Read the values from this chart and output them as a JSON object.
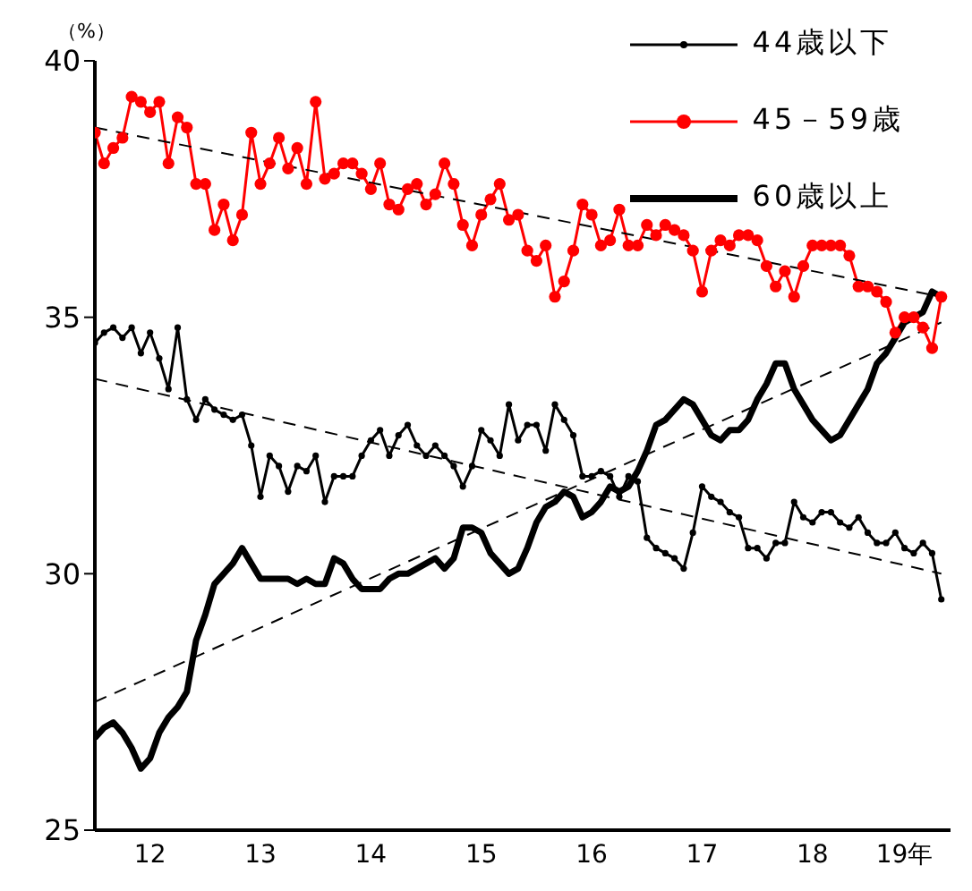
{
  "chart_data": {
    "type": "line",
    "ylabel": "（%）",
    "x": [
      "2012-01",
      "2012-02",
      "2012-03",
      "2012-04",
      "2012-05",
      "2012-06",
      "2012-07",
      "2012-08",
      "2012-09",
      "2012-10",
      "2012-11",
      "2012-12",
      "2013-01",
      "2013-02",
      "2013-03",
      "2013-04",
      "2013-05",
      "2013-06",
      "2013-07",
      "2013-08",
      "2013-09",
      "2013-10",
      "2013-11",
      "2013-12",
      "2014-01",
      "2014-02",
      "2014-03",
      "2014-04",
      "2014-05",
      "2014-06",
      "2014-07",
      "2014-08",
      "2014-09",
      "2014-10",
      "2014-11",
      "2014-12",
      "2015-01",
      "2015-02",
      "2015-03",
      "2015-04",
      "2015-05",
      "2015-06",
      "2015-07",
      "2015-08",
      "2015-09",
      "2015-10",
      "2015-11",
      "2015-12",
      "2016-01",
      "2016-02",
      "2016-03",
      "2016-04",
      "2016-05",
      "2016-06",
      "2016-07",
      "2016-08",
      "2016-09",
      "2016-10",
      "2016-11",
      "2016-12",
      "2017-01",
      "2017-02",
      "2017-03",
      "2017-04",
      "2017-05",
      "2017-06",
      "2017-07",
      "2017-08",
      "2017-09",
      "2017-10",
      "2017-11",
      "2017-12",
      "2018-01",
      "2018-02",
      "2018-03",
      "2018-04",
      "2018-05",
      "2018-06",
      "2018-07",
      "2018-08",
      "2018-09",
      "2018-10",
      "2018-11",
      "2018-12",
      "2019-01",
      "2019-02",
      "2019-03",
      "2019-04",
      "2019-05",
      "2019-06",
      "2019-07",
      "2019-08",
      "2019-09"
    ],
    "xlim": [
      "2012-01",
      "2019-10"
    ],
    "xticks": [
      {
        "value": "2012-07",
        "label": "12"
      },
      {
        "value": "2013-07",
        "label": "13"
      },
      {
        "value": "2014-07",
        "label": "14"
      },
      {
        "value": "2015-07",
        "label": "15"
      },
      {
        "value": "2016-07",
        "label": "16"
      },
      {
        "value": "2017-07",
        "label": "17"
      },
      {
        "value": "2018-07",
        "label": "18"
      },
      {
        "value": "2019-05",
        "label": "19年"
      }
    ],
    "ylim": [
      25,
      40
    ],
    "yticks": [
      25,
      30,
      35,
      40
    ],
    "grid": false,
    "legend": "top right",
    "series": [
      {
        "name": "44歳以下",
        "color": "#000000",
        "marker": "circle",
        "line_style": "solid",
        "values": [
          34.5,
          34.7,
          34.8,
          34.6,
          34.8,
          34.3,
          34.7,
          34.2,
          33.6,
          34.8,
          33.4,
          33.0,
          33.4,
          33.2,
          33.1,
          33.0,
          33.1,
          32.5,
          31.5,
          32.3,
          32.1,
          31.6,
          32.1,
          32.0,
          32.3,
          31.4,
          31.9,
          31.9,
          31.9,
          32.3,
          32.6,
          32.8,
          32.3,
          32.7,
          32.9,
          32.5,
          32.3,
          32.5,
          32.3,
          32.1,
          31.7,
          32.1,
          32.8,
          32.6,
          32.3,
          33.3,
          32.6,
          32.9,
          32.9,
          32.4,
          33.3,
          33.0,
          32.7,
          31.9,
          31.9,
          32.0,
          31.9,
          31.5,
          31.9,
          31.8,
          30.7,
          30.5,
          30.4,
          30.3,
          30.1,
          30.8,
          31.7,
          31.5,
          31.4,
          31.2,
          31.1,
          30.5,
          30.5,
          30.3,
          30.6,
          30.6,
          31.4,
          31.1,
          31.0,
          31.2,
          31.2,
          31.0,
          30.9,
          31.1,
          30.8,
          30.6,
          30.6,
          30.8,
          30.5,
          30.4,
          30.6,
          30.4,
          29.5
        ]
      },
      {
        "name": "45－59歳",
        "color": "#ff0000",
        "marker": "circle",
        "line_style": "solid",
        "values": [
          38.6,
          38.0,
          38.3,
          38.5,
          39.3,
          39.2,
          39.0,
          39.2,
          38.0,
          38.9,
          38.7,
          37.6,
          37.6,
          36.7,
          37.2,
          36.5,
          37.0,
          38.6,
          37.6,
          38.0,
          38.5,
          37.9,
          38.3,
          37.6,
          39.2,
          37.7,
          37.8,
          38.0,
          38.0,
          37.8,
          37.5,
          38.0,
          37.2,
          37.1,
          37.5,
          37.6,
          37.2,
          37.4,
          38.0,
          37.6,
          36.8,
          36.4,
          37.0,
          37.3,
          37.6,
          36.9,
          37.0,
          36.3,
          36.1,
          36.4,
          35.4,
          35.7,
          36.3,
          37.2,
          37.0,
          36.4,
          36.5,
          37.1,
          36.4,
          36.4,
          36.8,
          36.6,
          36.8,
          36.7,
          36.6,
          36.3,
          35.5,
          36.3,
          36.5,
          36.4,
          36.6,
          36.6,
          36.5,
          36.0,
          35.6,
          35.9,
          35.4,
          36.0,
          36.4,
          36.4,
          36.4,
          36.4,
          36.2,
          35.6,
          35.6,
          35.5,
          35.3,
          34.7,
          35.0,
          35.0,
          34.8,
          34.4,
          35.4
        ]
      },
      {
        "name": "60歳以上",
        "color": "#000000",
        "marker": "none",
        "line_style": "solid",
        "values": [
          26.8,
          27.0,
          27.1,
          26.9,
          26.6,
          26.2,
          26.4,
          26.9,
          27.2,
          27.4,
          27.7,
          28.7,
          29.2,
          29.8,
          30.0,
          30.2,
          30.5,
          30.2,
          29.9,
          29.9,
          29.9,
          29.9,
          29.8,
          29.9,
          29.8,
          29.8,
          30.3,
          30.2,
          29.9,
          29.7,
          29.7,
          29.7,
          29.9,
          30.0,
          30.0,
          30.1,
          30.2,
          30.3,
          30.1,
          30.3,
          30.9,
          30.9,
          30.8,
          30.4,
          30.2,
          30.0,
          30.1,
          30.5,
          31.0,
          31.3,
          31.4,
          31.6,
          31.5,
          31.1,
          31.2,
          31.4,
          31.7,
          31.6,
          31.7,
          32.0,
          32.4,
          32.9,
          33.0,
          33.2,
          33.4,
          33.3,
          33.0,
          32.7,
          32.6,
          32.8,
          32.8,
          33.0,
          33.4,
          33.7,
          34.1,
          34.1,
          33.6,
          33.3,
          33.0,
          32.8,
          32.6,
          32.7,
          33.0,
          33.3,
          33.6,
          34.1,
          34.3,
          34.6,
          34.9,
          35.0,
          35.1,
          35.5,
          35.4
        ]
      },
      {
        "type": "line",
        "color": "#000000",
        "marker": "none",
        "line_style": "dashed",
        "x": [
          "2012-01",
          "2019-09"
        ],
        "values": [
          38.7,
          35.4
        ]
      },
      {
        "type": "line",
        "color": "#000000",
        "marker": "none",
        "line_style": "dashed",
        "x": [
          "2012-01",
          "2019-09"
        ],
        "values": [
          33.8,
          30.0
        ]
      },
      {
        "type": "line",
        "color": "#000000",
        "marker": "none",
        "line_style": "dashed",
        "x": [
          "2012-01",
          "2019-09"
        ],
        "values": [
          27.5,
          34.9
        ]
      }
    ]
  }
}
